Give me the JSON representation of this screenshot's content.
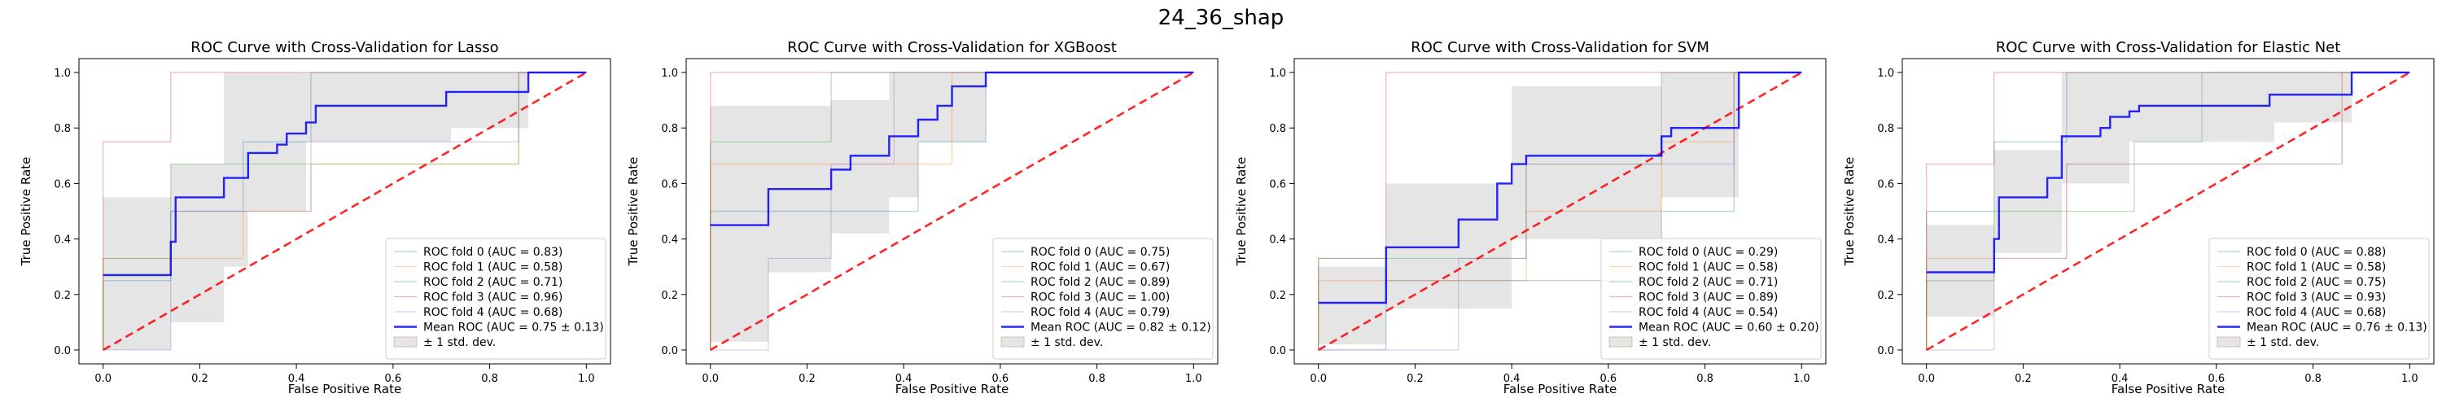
{
  "figure": {
    "suptitle": "24_36_shap"
  },
  "colors": {
    "fold": [
      "#1f77b4",
      "#ff7f0e",
      "#2ca02c",
      "#d62728",
      "#9467bd"
    ],
    "mean": "#0000ff",
    "chance": "#ff0000",
    "band": "#bfbfbf"
  },
  "chart_data": [
    {
      "type": "line",
      "title": "ROC Curve with Cross-Validation for Lasso",
      "xlabel": "False Positive Rate",
      "ylabel": "True Positive Rate",
      "xlim": [
        -0.05,
        1.05
      ],
      "ylim": [
        -0.05,
        1.05
      ],
      "xticks": [
        "0.0",
        "0.2",
        "0.4",
        "0.6",
        "0.8",
        "1.0"
      ],
      "yticks": [
        "0.0",
        "0.2",
        "0.4",
        "0.6",
        "0.8",
        "1.0"
      ],
      "grid": false,
      "legend_position": "lower-right",
      "folds": [
        {
          "name": "ROC fold 0 (AUC = 0.83)",
          "x": [
            0,
            0,
            0.14,
            0.14,
            0.29,
            0.29,
            0.43,
            0.43,
            0.71,
            0.71,
            1
          ],
          "y": [
            0,
            0.25,
            0.25,
            0.5,
            0.5,
            0.75,
            0.75,
            1,
            1,
            1,
            1
          ]
        },
        {
          "name": "ROC fold 1 (AUC = 0.58)",
          "x": [
            0,
            0,
            0.14,
            0.14,
            0.29,
            0.29,
            0.43,
            0.43,
            0.71,
            0.71,
            0.86,
            0.86,
            1
          ],
          "y": [
            0,
            0.33,
            0.33,
            0.33,
            0.33,
            0.5,
            0.5,
            0.67,
            0.67,
            0.67,
            0.67,
            1,
            1
          ]
        },
        {
          "name": "ROC fold 2 (AUC = 0.71)",
          "x": [
            0,
            0,
            0.14,
            0.14,
            0.43,
            0.43,
            0.86,
            0.86,
            1
          ],
          "y": [
            0,
            0.33,
            0.33,
            0.67,
            0.67,
            0.67,
            0.67,
            1,
            1
          ]
        },
        {
          "name": "ROC fold 3 (AUC = 0.96)",
          "x": [
            0,
            0,
            0.14,
            0.14,
            1
          ],
          "y": [
            0,
            0.75,
            0.75,
            1,
            1
          ]
        },
        {
          "name": "ROC fold 4 (AUC = 0.68)",
          "x": [
            0,
            0.14,
            0.14,
            0.29,
            0.29,
            0.43,
            0.43,
            0.57,
            0.57,
            0.86,
            0.86,
            1
          ],
          "y": [
            0,
            0,
            0.5,
            0.5,
            0.5,
            0.5,
            0.75,
            0.75,
            0.75,
            0.75,
            1,
            1
          ]
        }
      ],
      "mean": {
        "name": "Mean ROC (AUC = 0.75 ± 0.13)",
        "x": [
          0,
          0.14,
          0.14,
          0.15,
          0.15,
          0.25,
          0.25,
          0.3,
          0.3,
          0.36,
          0.36,
          0.38,
          0.38,
          0.42,
          0.42,
          0.44,
          0.44,
          0.71,
          0.71,
          0.88,
          0.88,
          1.0
        ],
        "y": [
          0.27,
          0.27,
          0.39,
          0.39,
          0.55,
          0.55,
          0.62,
          0.62,
          0.71,
          0.71,
          0.74,
          0.74,
          0.78,
          0.78,
          0.82,
          0.82,
          0.88,
          0.88,
          0.93,
          0.93,
          1.0,
          1.0
        ]
      },
      "band": {
        "name": "± 1 std. dev.",
        "x": [
          0,
          0.14,
          0.14,
          0.25,
          0.25,
          0.3,
          0.3,
          0.42,
          0.42,
          0.72,
          0.72,
          0.88,
          0.88,
          1.0
        ],
        "upper": [
          0.55,
          0.55,
          0.67,
          0.67,
          1.0,
          1.0,
          1.0,
          1.0,
          1.0,
          1.0,
          1.0,
          1.0,
          1.0,
          1.0
        ],
        "lower": [
          0.0,
          0.0,
          0.1,
          0.1,
          0.3,
          0.3,
          0.5,
          0.5,
          0.75,
          0.75,
          0.8,
          0.8,
          1.0,
          1.0
        ]
      },
      "chance": {
        "x": [
          0,
          1
        ],
        "y": [
          0,
          1
        ]
      }
    },
    {
      "type": "line",
      "title": "ROC Curve with Cross-Validation for XGBoost",
      "xlabel": "False Positive Rate",
      "ylabel": "True Positive Rate",
      "xlim": [
        -0.05,
        1.05
      ],
      "ylim": [
        -0.05,
        1.05
      ],
      "xticks": [
        "0.0",
        "0.2",
        "0.4",
        "0.6",
        "0.8",
        "1.0"
      ],
      "yticks": [
        "0.0",
        "0.2",
        "0.4",
        "0.6",
        "0.8",
        "1.0"
      ],
      "grid": false,
      "legend_position": "lower-right",
      "folds": [
        {
          "name": "ROC fold 0 (AUC = 0.75)",
          "x": [
            0,
            0,
            0.14,
            0.14,
            0.43,
            0.43,
            0.57,
            0.57,
            1
          ],
          "y": [
            0,
            0.5,
            0.5,
            0.5,
            0.5,
            0.75,
            0.75,
            1,
            1
          ]
        },
        {
          "name": "ROC fold 1 (AUC = 0.67)",
          "x": [
            0,
            0,
            0.12,
            0.12,
            0.38,
            0.38,
            0.5,
            0.5,
            1
          ],
          "y": [
            0,
            0.67,
            0.67,
            0.67,
            0.67,
            0.67,
            0.67,
            1,
            1
          ]
        },
        {
          "name": "ROC fold 2 (AUC = 0.89)",
          "x": [
            0,
            0,
            0.12,
            0.12,
            0.25,
            0.25,
            0.38,
            0.38,
            1
          ],
          "y": [
            0,
            0.75,
            0.75,
            0.75,
            0.75,
            1,
            1,
            1,
            1
          ]
        },
        {
          "name": "ROC fold 3 (AUC = 1.00)",
          "x": [
            0,
            0,
            1
          ],
          "y": [
            0,
            1,
            1
          ]
        },
        {
          "name": "ROC fold 4 (AUC = 0.79)",
          "x": [
            0,
            0.12,
            0.12,
            0.25,
            0.25,
            0.38,
            0.38,
            1
          ],
          "y": [
            0,
            0,
            0.33,
            0.33,
            0.67,
            0.67,
            1,
            1
          ]
        }
      ],
      "mean": {
        "name": "Mean ROC (AUC = 0.82 ± 0.12)",
        "x": [
          0,
          0.12,
          0.12,
          0.25,
          0.25,
          0.29,
          0.29,
          0.37,
          0.37,
          0.43,
          0.43,
          0.47,
          0.47,
          0.5,
          0.5,
          0.57,
          0.57,
          1.0
        ],
        "y": [
          0.45,
          0.45,
          0.58,
          0.58,
          0.65,
          0.65,
          0.7,
          0.7,
          0.77,
          0.77,
          0.83,
          0.83,
          0.88,
          0.88,
          0.95,
          0.95,
          1.0,
          1.0
        ]
      },
      "band": {
        "name": "± 1 std. dev.",
        "x": [
          0,
          0.12,
          0.12,
          0.25,
          0.25,
          0.37,
          0.37,
          0.43,
          0.43,
          0.57,
          0.57,
          1.0
        ],
        "upper": [
          0.88,
          0.88,
          0.88,
          0.88,
          0.9,
          0.9,
          1.0,
          1.0,
          1.0,
          1.0,
          1.0,
          1.0
        ],
        "lower": [
          0.03,
          0.03,
          0.28,
          0.28,
          0.42,
          0.42,
          0.55,
          0.55,
          0.75,
          0.75,
          1.0,
          1.0
        ]
      },
      "chance": {
        "x": [
          0,
          1
        ],
        "y": [
          0,
          1
        ]
      }
    },
    {
      "type": "line",
      "title": "ROC Curve with Cross-Validation for SVM",
      "xlabel": "False Positive Rate",
      "ylabel": "True Positive Rate",
      "xlim": [
        -0.05,
        1.05
      ],
      "ylim": [
        -0.05,
        1.05
      ],
      "xticks": [
        "0.0",
        "0.2",
        "0.4",
        "0.6",
        "0.8",
        "1.0"
      ],
      "yticks": [
        "0.0",
        "0.2",
        "0.4",
        "0.6",
        "0.8",
        "1.0"
      ],
      "grid": false,
      "legend_position": "lower-right",
      "folds": [
        {
          "name": "ROC fold 0 (AUC = 0.29)",
          "x": [
            0,
            0,
            0.14,
            0.14,
            0.43,
            0.43,
            0.71,
            0.71,
            0.86,
            0.86,
            1
          ],
          "y": [
            0,
            0,
            0,
            0.25,
            0.25,
            0.25,
            0.25,
            0.5,
            0.5,
            1,
            1
          ]
        },
        {
          "name": "ROC fold 1 (AUC = 0.58)",
          "x": [
            0,
            0,
            0.14,
            0.14,
            0.43,
            0.43,
            0.71,
            0.71,
            0.86,
            0.86,
            1
          ],
          "y": [
            0,
            0.25,
            0.25,
            0.25,
            0.25,
            0.5,
            0.5,
            0.75,
            0.75,
            1,
            1
          ]
        },
        {
          "name": "ROC fold 2 (AUC = 0.71)",
          "x": [
            0,
            0,
            0.14,
            0.14,
            0.43,
            0.43,
            0.71,
            0.71,
            1
          ],
          "y": [
            0,
            0.33,
            0.33,
            0.33,
            0.33,
            0.67,
            0.67,
            1,
            1
          ]
        },
        {
          "name": "ROC fold 3 (AUC = 0.89)",
          "x": [
            0,
            0,
            0.14,
            0.14,
            0.29,
            0.29,
            1
          ],
          "y": [
            0,
            0.33,
            0.33,
            1,
            1,
            1,
            1
          ]
        },
        {
          "name": "ROC fold 4 (AUC = 0.54)",
          "x": [
            0,
            0.29,
            0.29,
            0.43,
            0.43,
            0.71,
            0.71,
            0.86,
            0.86,
            1
          ],
          "y": [
            0,
            0,
            0.33,
            0.33,
            0.67,
            0.67,
            0.67,
            0.67,
            1,
            1
          ]
        }
      ],
      "mean": {
        "name": "Mean ROC (AUC = 0.60 ± 0.20)",
        "x": [
          0,
          0.14,
          0.14,
          0.29,
          0.29,
          0.37,
          0.37,
          0.4,
          0.4,
          0.43,
          0.43,
          0.71,
          0.71,
          0.73,
          0.73,
          0.87,
          0.87,
          1.0
        ],
        "y": [
          0.17,
          0.17,
          0.37,
          0.37,
          0.47,
          0.47,
          0.6,
          0.6,
          0.67,
          0.67,
          0.7,
          0.7,
          0.77,
          0.77,
          0.8,
          0.8,
          1.0,
          1.0
        ]
      },
      "band": {
        "name": "± 1 std. dev.",
        "x": [
          0,
          0.14,
          0.14,
          0.4,
          0.4,
          0.71,
          0.71,
          0.87,
          0.87,
          1.0
        ],
        "upper": [
          0.3,
          0.3,
          0.6,
          0.6,
          0.95,
          0.95,
          1.0,
          1.0,
          1.0,
          1.0
        ],
        "lower": [
          0.02,
          0.02,
          0.15,
          0.15,
          0.4,
          0.4,
          0.55,
          0.55,
          1.0,
          1.0
        ]
      },
      "chance": {
        "x": [
          0,
          1
        ],
        "y": [
          0,
          1
        ]
      }
    },
    {
      "type": "line",
      "title": "ROC Curve with Cross-Validation for Elastic Net",
      "xlabel": "False Positive Rate",
      "ylabel": "True Positive Rate",
      "xlim": [
        -0.05,
        1.05
      ],
      "ylim": [
        -0.05,
        1.05
      ],
      "xticks": [
        "0.0",
        "0.2",
        "0.4",
        "0.6",
        "0.8",
        "1.0"
      ],
      "yticks": [
        "0.0",
        "0.2",
        "0.4",
        "0.6",
        "0.8",
        "1.0"
      ],
      "grid": false,
      "legend_position": "lower-right",
      "folds": [
        {
          "name": "ROC fold 0 (AUC = 0.88)",
          "x": [
            0,
            0,
            0.14,
            0.14,
            0.29,
            0.29,
            1
          ],
          "y": [
            0,
            0.5,
            0.5,
            0.75,
            0.75,
            1,
            1
          ]
        },
        {
          "name": "ROC fold 1 (AUC = 0.58)",
          "x": [
            0,
            0,
            0.14,
            0.14,
            0.29,
            0.29,
            0.43,
            0.43,
            0.86,
            0.86,
            1
          ],
          "y": [
            0,
            0.33,
            0.33,
            0.33,
            0.33,
            0.67,
            0.67,
            0.67,
            0.67,
            1,
            1
          ]
        },
        {
          "name": "ROC fold 2 (AUC = 0.75)",
          "x": [
            0,
            0,
            0.14,
            0.14,
            0.43,
            0.43,
            0.57,
            0.57,
            1
          ],
          "y": [
            0,
            0.25,
            0.25,
            0.5,
            0.5,
            0.75,
            0.75,
            1,
            1
          ]
        },
        {
          "name": "ROC fold 3 (AUC = 0.93)",
          "x": [
            0,
            0,
            0.14,
            0.14,
            1
          ],
          "y": [
            0,
            0.67,
            0.67,
            1,
            1
          ]
        },
        {
          "name": "ROC fold 4 (AUC = 0.68)",
          "x": [
            0,
            0.14,
            0.14,
            0.29,
            0.29,
            0.43,
            0.43,
            0.57,
            0.57,
            0.86,
            0.86,
            1
          ],
          "y": [
            0,
            0,
            0.33,
            0.33,
            0.67,
            0.67,
            0.67,
            0.67,
            0.67,
            0.67,
            1,
            1
          ]
        }
      ],
      "mean": {
        "name": "Mean ROC (AUC = 0.76 ± 0.13)",
        "x": [
          0,
          0.14,
          0.14,
          0.15,
          0.15,
          0.25,
          0.25,
          0.28,
          0.28,
          0.36,
          0.36,
          0.38,
          0.38,
          0.42,
          0.42,
          0.44,
          0.44,
          0.71,
          0.71,
          0.88,
          0.88,
          1.0
        ],
        "y": [
          0.28,
          0.28,
          0.4,
          0.4,
          0.55,
          0.55,
          0.62,
          0.62,
          0.77,
          0.77,
          0.8,
          0.8,
          0.84,
          0.84,
          0.86,
          0.86,
          0.88,
          0.88,
          0.92,
          0.92,
          1.0,
          1.0
        ]
      },
      "band": {
        "name": "± 1 std. dev.",
        "x": [
          0,
          0.14,
          0.14,
          0.28,
          0.28,
          0.42,
          0.42,
          0.72,
          0.72,
          0.88,
          0.88,
          1.0
        ],
        "upper": [
          0.45,
          0.45,
          0.72,
          0.72,
          1.0,
          1.0,
          1.0,
          1.0,
          1.0,
          1.0,
          1.0,
          1.0
        ],
        "lower": [
          0.12,
          0.12,
          0.35,
          0.35,
          0.6,
          0.6,
          0.75,
          0.75,
          0.82,
          0.82,
          1.0,
          1.0
        ]
      },
      "chance": {
        "x": [
          0,
          1
        ],
        "y": [
          0,
          1
        ]
      }
    }
  ]
}
